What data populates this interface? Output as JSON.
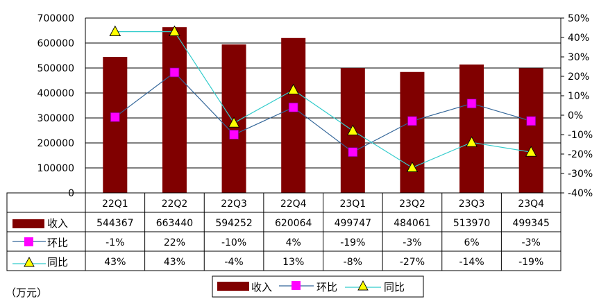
{
  "chart_data": {
    "type": "bar",
    "categories": [
      "22Q1",
      "22Q2",
      "22Q3",
      "22Q4",
      "23Q1",
      "23Q2",
      "23Q3",
      "23Q4"
    ],
    "unit": "（万元）",
    "ylim": [
      0,
      700000
    ],
    "y_ticks": [
      "0",
      "100000",
      "200000",
      "300000",
      "400000",
      "500000",
      "600000",
      "700000"
    ],
    "y2lim": [
      -40,
      50
    ],
    "y2_ticks": [
      "-40%",
      "-30%",
      "-20%",
      "-10%",
      "0%",
      "10%",
      "20%",
      "30%",
      "40%",
      "50%"
    ],
    "grid": true,
    "legend_position": "bottom",
    "series": [
      {
        "name": "收入",
        "type": "bar",
        "color": "#800000",
        "values": [
          544367,
          663440,
          594252,
          620064,
          499747,
          484061,
          513970,
          499345
        ],
        "labels": [
          "544367",
          "663440",
          "594252",
          "620064",
          "499747",
          "484061",
          "513970",
          "499345"
        ]
      },
      {
        "name": "环比",
        "type": "line",
        "axis": "right",
        "color": "#ff00ff",
        "line_color": "#336699",
        "marker": "square",
        "values": [
          -1,
          22,
          -10,
          4,
          -19,
          -3,
          6,
          -3
        ],
        "labels": [
          "-1%",
          "22%",
          "-10%",
          "4%",
          "-19%",
          "-3%",
          "6%",
          "-3%"
        ]
      },
      {
        "name": "同比",
        "type": "line",
        "axis": "right",
        "color": "#ffff00",
        "line_color": "#33cccc",
        "marker": "triangle",
        "values": [
          43,
          43,
          -4,
          13,
          -8,
          -27,
          -14,
          -19
        ],
        "labels": [
          "43%",
          "43%",
          "-4%",
          "13%",
          "-8%",
          "-27%",
          "-14%",
          "-19%"
        ]
      }
    ]
  }
}
